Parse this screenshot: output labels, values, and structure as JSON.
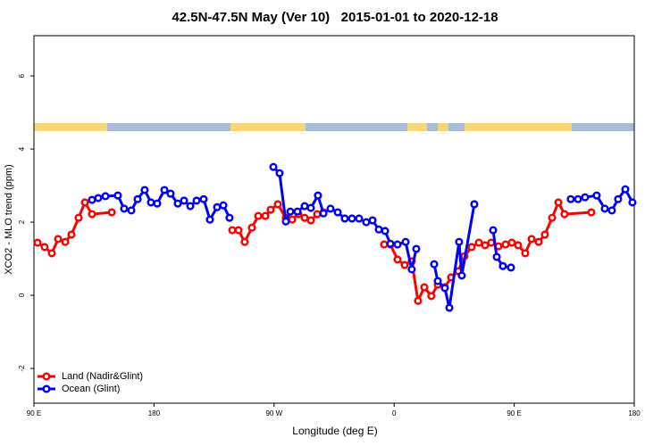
{
  "chart_data": {
    "type": "line",
    "title": "42.5N-47.5N May (Ver 10)   2015-01-01 to 2020-12-18",
    "xlabel": "Longitude (deg E)",
    "ylabel": "XCO2 - MLO trend (ppm)",
    "xlim": [
      90,
      540
    ],
    "xticks": [
      {
        "value": 90,
        "label": "90 E"
      },
      {
        "value": 180,
        "label": "180"
      },
      {
        "value": 270,
        "label": "90 W"
      },
      {
        "value": 360,
        "label": "0"
      },
      {
        "value": 450,
        "label": "90 E"
      },
      {
        "value": 540,
        "label": "180"
      }
    ],
    "ylim": [
      -2.95,
      7.1
    ],
    "yticks": [
      -2,
      0,
      2,
      4,
      6
    ],
    "legend": "bottomleft",
    "series": [
      {
        "name": "Land (Nadir&Glint)",
        "color": "#ff0000",
        "x": [
          92.7,
          98.0,
          103.4,
          108.1,
          113.4,
          118.1,
          123.5,
          128.2,
          133.5,
          148.3,
          null,
          238.7,
          243.3,
          248.0,
          253.4,
          258.1,
          263.4,
          267.4,
          272.8,
          278.8,
          283.5,
          288.2,
          292.9,
          297.6,
          302.3,
          307.0,
          null,
          352.5,
          357.2,
          362.5,
          367.9,
          373.2,
          377.9,
          382.6,
          387.9,
          392.7,
          398.0,
          402.7,
          408.1,
          412.7,
          418.1,
          423.5,
          428.1,
          432.8,
          438.2,
          443.5,
          448.2,
          452.9,
          458.3,
          463.0,
          468.3,
          473.0,
          478.4,
          483.1,
          487.7,
          507.8
        ],
        "values": [
          1.44,
          1.32,
          1.15,
          1.54,
          1.46,
          1.66,
          2.12,
          2.54,
          2.22,
          2.27,
          null,
          1.78,
          1.78,
          1.46,
          1.85,
          2.17,
          2.17,
          2.34,
          2.49,
          2.12,
          2.07,
          2.22,
          2.12,
          2.05,
          2.22,
          2.27,
          null,
          1.39,
          1.39,
          0.98,
          0.83,
          0.93,
          -0.15,
          0.22,
          -0.02,
          0.29,
          0.22,
          0.49,
          0.66,
          1.07,
          1.32,
          1.44,
          1.37,
          1.44,
          1.34,
          1.39,
          1.44,
          1.37,
          1.15,
          1.54,
          1.46,
          1.66,
          2.12,
          2.54,
          2.22,
          2.27
        ]
      },
      {
        "name": "Ocean (Glint)",
        "color": "#0000ff",
        "x": [
          133.5,
          138.2,
          143.6,
          152.9,
          157.6,
          163.0,
          167.7,
          173.0,
          177.7,
          182.4,
          187.8,
          192.4,
          197.8,
          202.5,
          207.2,
          211.9,
          217.2,
          221.9,
          227.3,
          232.0,
          236.6,
          null,
          269.5,
          274.1,
          278.8,
          282.2,
          287.5,
          292.9,
          297.6,
          302.9,
          307.0,
          312.3,
          317.7,
          323.0,
          328.4,
          333.7,
          339.1,
          343.8,
          348.5,
          353.2,
          357.2,
          362.5,
          368.6,
          373.2,
          376.6,
          null,
          390.0,
          392.7,
          398.0,
          401.4,
          408.7,
          410.7,
          420.1,
          null,
          434.2,
          436.9,
          441.5,
          447.6,
          null,
          492.4,
          497.8,
          503.1,
          511.8,
          517.9,
          523.2,
          527.9,
          533.3,
          538.6
        ],
        "values": [
          2.61,
          2.66,
          2.71,
          2.73,
          2.37,
          2.32,
          2.63,
          2.88,
          2.54,
          2.51,
          2.88,
          2.78,
          2.51,
          2.59,
          2.44,
          2.59,
          2.63,
          2.07,
          2.41,
          2.46,
          2.12,
          null,
          3.51,
          3.34,
          2.02,
          2.29,
          2.29,
          2.44,
          2.39,
          2.73,
          2.24,
          2.37,
          2.27,
          2.1,
          2.1,
          2.1,
          2.0,
          2.05,
          1.8,
          1.76,
          1.41,
          1.39,
          1.46,
          0.71,
          1.27,
          null,
          0.85,
          0.39,
          0.2,
          -0.34,
          1.46,
          0.54,
          2.49,
          null,
          1.78,
          1.05,
          0.8,
          0.76,
          null,
          2.63,
          2.63,
          2.68,
          2.73,
          2.37,
          2.32,
          2.63,
          2.9,
          2.54
        ]
      }
    ]
  }
}
